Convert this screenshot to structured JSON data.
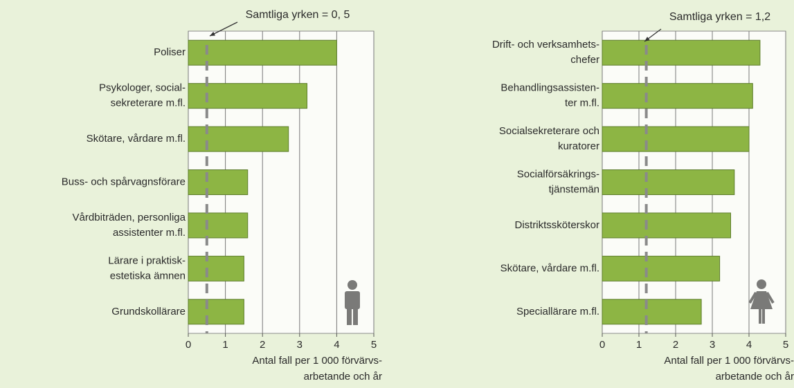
{
  "chart_data": [
    {
      "type": "bar",
      "orientation": "horizontal",
      "categories": [
        "Poliser",
        "Psykologer, social-\nsekreterare m.fl.",
        "Skötare, vårdare m.fl.",
        "Buss- och spårvagnsförare",
        "Vårdbiträden, personliga\nassistenter m.fl.",
        "Lärare i praktisk-\nestetiska ämnen",
        "Grundskollärare"
      ],
      "values": [
        4.0,
        3.2,
        2.7,
        1.6,
        1.6,
        1.5,
        1.5
      ],
      "color": "#8db544",
      "xlim": [
        0,
        5
      ],
      "xticks": [
        0,
        1,
        2,
        3,
        4,
        5
      ],
      "grid": true,
      "xlabel": "Antal fall per 1 000 förvärvs-\narbetande och år",
      "reference": {
        "value": 0.5,
        "label": "Samtliga yrken = 0, 5"
      }
    },
    {
      "type": "bar",
      "orientation": "horizontal",
      "categories": [
        "Drift- och verksamhets-\nchefer",
        "Behandlingsassisten-\nter m.fl.",
        "Socialsekreterare och\nkuratorer",
        "Socialförsäkrings-\ntjänstemän",
        "Distriktssköterskor",
        "Skötare, vårdare m.fl.",
        "Speciallärare m.fl."
      ],
      "values": [
        4.3,
        4.1,
        4.0,
        3.6,
        3.5,
        3.2,
        2.7
      ],
      "color": "#8db544",
      "xlim": [
        0,
        5
      ],
      "xticks": [
        0,
        1,
        2,
        3,
        4,
        5
      ],
      "grid": true,
      "xlabel": "Antal fall per 1 000 förvärvs-\narbetande och år",
      "reference": {
        "value": 1.2,
        "label": "Samtliga yrken = 1,2"
      }
    }
  ]
}
